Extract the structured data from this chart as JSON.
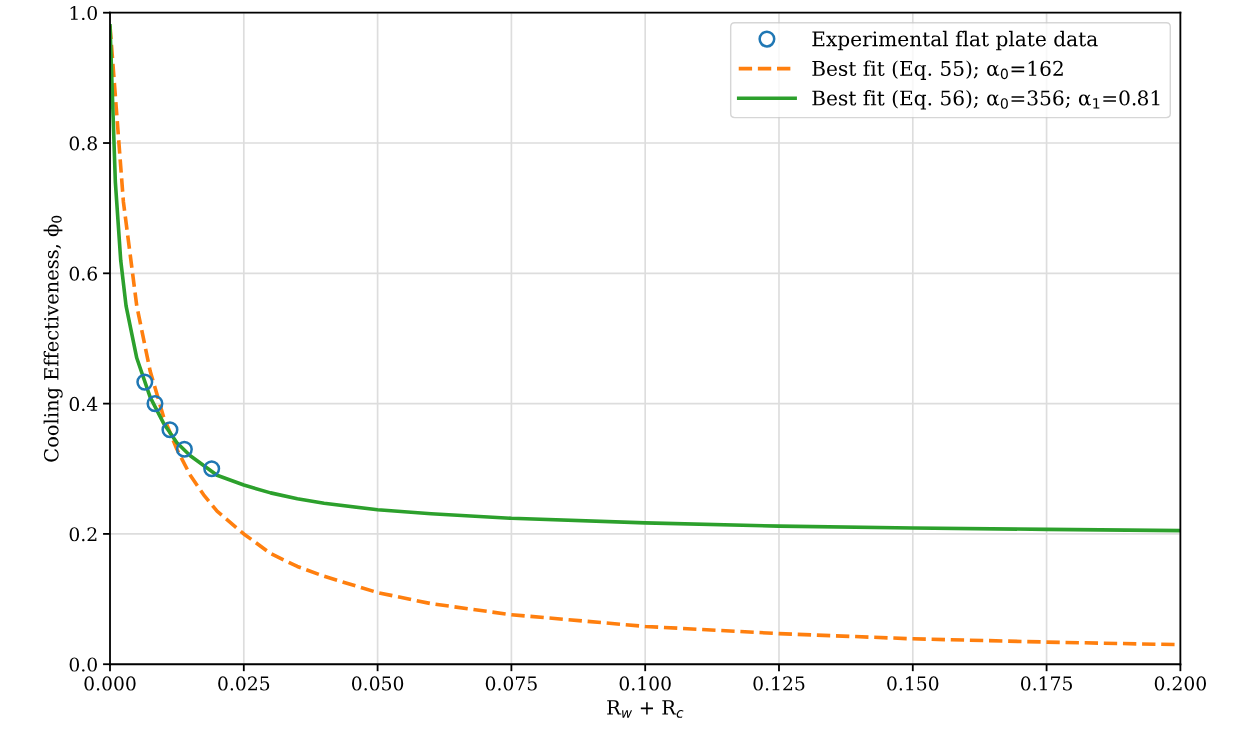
{
  "chart_data": {
    "type": "line",
    "xlabel": "R$_{w}$ + R$_{c}$",
    "ylabel": "Cooling Effectiveness, ϕ$_{0}$",
    "xlim": [
      0.0,
      0.2
    ],
    "ylim": [
      0.0,
      1.0
    ],
    "xticks": [
      {
        "value": 0,
        "label": "0.000"
      },
      {
        "value": 0.025,
        "label": "0.025"
      },
      {
        "value": 0.05,
        "label": "0.050"
      },
      {
        "value": 0.075,
        "label": "0.075"
      },
      {
        "value": 0.1,
        "label": "0.100"
      },
      {
        "value": 0.125,
        "label": "0.125"
      },
      {
        "value": 0.15,
        "label": "0.150"
      },
      {
        "value": 0.175,
        "label": "0.175"
      },
      {
        "value": 0.2,
        "label": "0.200"
      }
    ],
    "yticks": [
      {
        "value": 0,
        "label": "0.0"
      },
      0.2,
      0.4,
      0.6,
      0.8,
      {
        "value": 1,
        "label": "1.0"
      }
    ],
    "grid": true,
    "legend": "top right",
    "series": [
      {
        "name": "Experimental flat plate data",
        "type": "scatter",
        "marker": "circle",
        "color": "#1f77b4",
        "x": [
          0.0065,
          0.0084,
          0.0112,
          0.0139,
          0.019
        ],
        "values": [
          0.433,
          0.4,
          0.36,
          0.33,
          0.3
        ]
      },
      {
        "name": "Best fit (Eq. 55); α$_{0}$=162",
        "line_style": "dashed",
        "color": "#ff7f0e",
        "x": [
          0,
          0.0025,
          0.005,
          0.0075,
          0.01,
          0.0125,
          0.015,
          0.0175,
          0.02,
          0.025,
          0.03,
          0.035,
          0.04,
          0.05,
          0.06,
          0.075,
          0.1,
          0.125,
          0.15,
          0.175,
          0.2
        ],
        "values": [
          0.98,
          0.71,
          0.55,
          0.45,
          0.38,
          0.33,
          0.29,
          0.26,
          0.235,
          0.2,
          0.17,
          0.15,
          0.135,
          0.11,
          0.093,
          0.076,
          0.058,
          0.047,
          0.039,
          0.034,
          0.03
        ]
      },
      {
        "name": "Best fit (Eq. 56); α$_{0}$=356; α$_{1}$=0.81",
        "line_style": "solid",
        "color": "#2ca02c",
        "x": [
          0,
          0.001,
          0.002,
          0.003,
          0.005,
          0.0075,
          0.01,
          0.0125,
          0.015,
          0.02,
          0.025,
          0.03,
          0.035,
          0.04,
          0.05,
          0.06,
          0.075,
          0.1,
          0.125,
          0.15,
          0.175,
          0.2
        ],
        "values": [
          0.98,
          0.74,
          0.62,
          0.55,
          0.47,
          0.41,
          0.37,
          0.34,
          0.32,
          0.29,
          0.275,
          0.263,
          0.254,
          0.247,
          0.237,
          0.231,
          0.224,
          0.217,
          0.212,
          0.209,
          0.207,
          0.205
        ]
      }
    ]
  }
}
